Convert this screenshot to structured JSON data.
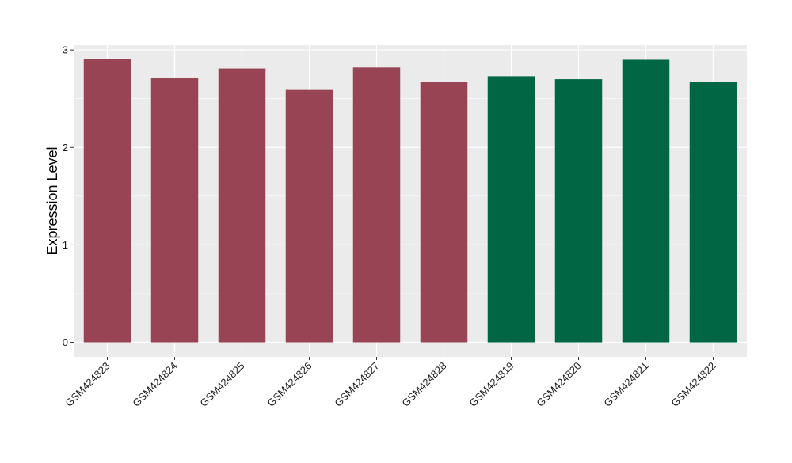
{
  "chart_data": {
    "type": "bar",
    "ylabel": "Expression Level",
    "xlabel": "",
    "ylim": [
      -0.15,
      3.05
    ],
    "y_ticks": [
      0,
      1,
      2,
      3
    ],
    "grid": true,
    "background": "#EBEBEB",
    "gridline_color": "#FFFFFF",
    "categories": [
      "GSM424823",
      "GSM424824",
      "GSM424825",
      "GSM424826",
      "GSM424827",
      "GSM424828",
      "GSM424819",
      "GSM424820",
      "GSM424821",
      "GSM424822"
    ],
    "values": [
      2.91,
      2.71,
      2.81,
      2.59,
      2.82,
      2.67,
      2.73,
      2.7,
      2.9,
      2.67
    ],
    "bar_colors": [
      "#994455",
      "#994455",
      "#994455",
      "#994455",
      "#994455",
      "#994455",
      "#006644",
      "#006644",
      "#006644",
      "#006644"
    ]
  }
}
